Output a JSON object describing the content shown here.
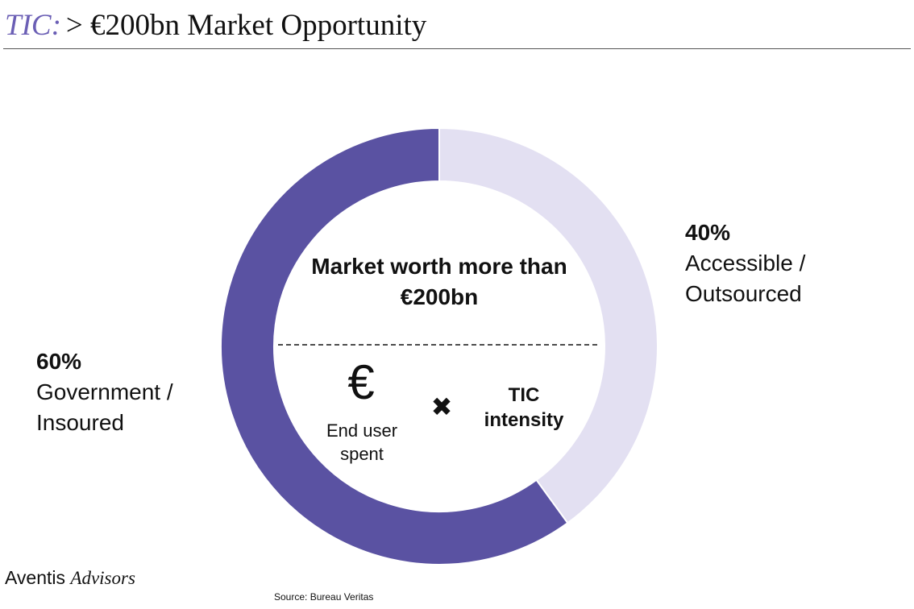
{
  "header": {
    "tag": "TIC:",
    "title": "> €200bn Market Opportunity"
  },
  "chart_data": {
    "type": "donut",
    "categories": [
      "Accessible / Outsourced",
      "Government / Insoured"
    ],
    "values": [
      40,
      60
    ],
    "value_labels": [
      "40%",
      "60%"
    ],
    "colors": [
      "#e3e0f2",
      "#5a52a2"
    ],
    "annotations": [
      "Market worth more than €200bn",
      "€",
      "End user spent",
      "✖",
      "TIC intensity"
    ]
  },
  "footer": {
    "brand": "Aventis",
    "brand_sub": "Advisors",
    "source": "Source: Bureau Veritas"
  }
}
